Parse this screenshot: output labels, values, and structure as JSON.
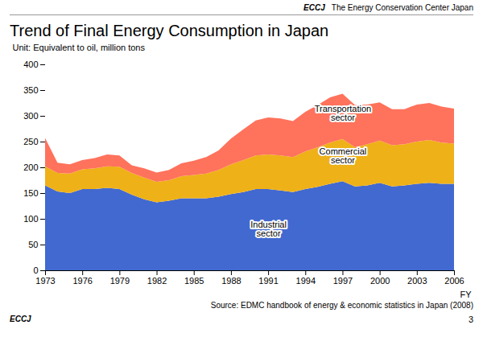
{
  "chart_data": {
    "type": "area",
    "stacked": true,
    "title": "Trend of Final Energy Consumption in Japan",
    "header": [
      "ECCJ",
      "The Energy Conservation Center Japan"
    ],
    "ylabel": "Unit: Equivalent to oil, million tons",
    "xlabel": "FY",
    "source": "Source: EDMC handbook of energy & economic statistics in Japan (2008)",
    "footer": [
      "ECCJ"
    ],
    "page_number": "3",
    "x": [
      1973,
      1974,
      1975,
      1976,
      1977,
      1978,
      1979,
      1980,
      1981,
      1982,
      1983,
      1984,
      1985,
      1986,
      1987,
      1988,
      1989,
      1990,
      1991,
      1992,
      1993,
      1994,
      1995,
      1996,
      1997,
      1998,
      1999,
      2000,
      2001,
      2002,
      2003,
      2004,
      2005,
      2006
    ],
    "series": [
      {
        "name": "Industrial\nsector",
        "values": [
          165,
          153,
          150,
          158,
          158,
          160,
          158,
          147,
          138,
          132,
          135,
          140,
          140,
          140,
          143,
          148,
          152,
          158,
          158,
          155,
          152,
          158,
          162,
          168,
          173,
          163,
          165,
          170,
          163,
          165,
          168,
          170,
          168,
          168
        ]
      },
      {
        "name": "Commercial\nsector",
        "values": [
          37,
          36,
          38,
          38,
          40,
          42,
          43,
          42,
          42,
          40,
          40,
          43,
          45,
          48,
          52,
          58,
          62,
          65,
          67,
          68,
          68,
          73,
          77,
          80,
          82,
          76,
          80,
          82,
          80,
          80,
          82,
          83,
          80,
          78
        ]
      },
      {
        "name": "Transportation\nsector",
        "values": [
          55,
          20,
          18,
          18,
          20,
          23,
          22,
          15,
          18,
          18,
          20,
          25,
          28,
          32,
          38,
          50,
          60,
          68,
          72,
          72,
          70,
          77,
          82,
          88,
          88,
          82,
          77,
          74,
          70,
          68,
          72,
          72,
          70,
          68
        ]
      }
    ],
    "annotations": [
      {
        "text": "Industrial\nsector",
        "x": 1991,
        "y": 80
      },
      {
        "text": "Commercial\nsector",
        "x": 1997,
        "y": 222
      },
      {
        "text": "Transportation\nsector",
        "x": 1997,
        "y": 305
      }
    ],
    "xlim": [
      1973,
      2006
    ],
    "xticks": [
      1973,
      1976,
      1979,
      1982,
      1985,
      1988,
      1991,
      1994,
      1997,
      2000,
      2003,
      2006
    ],
    "ylim": [
      0,
      400
    ],
    "yticks": [
      0,
      50,
      100,
      150,
      200,
      250,
      300,
      350,
      400
    ]
  }
}
